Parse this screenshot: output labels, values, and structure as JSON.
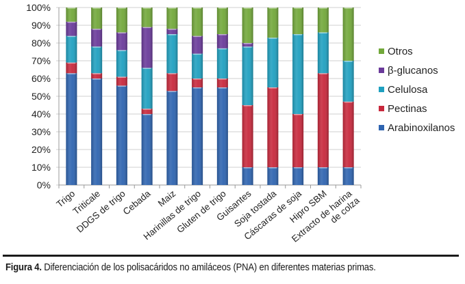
{
  "chart_data": {
    "type": "bar",
    "stacked": true,
    "percent_stacked": true,
    "title": "",
    "xlabel": "",
    "ylabel": "",
    "ylim": [
      0,
      100
    ],
    "yticks": [
      "0%",
      "10%",
      "20%",
      "30%",
      "40%",
      "50%",
      "60%",
      "70%",
      "80%",
      "90%",
      "100%"
    ],
    "grid": true,
    "legend_position": "right",
    "categories": [
      "Trigo",
      "Triticale",
      "DDGS de trigo",
      "Cebada",
      "Maiz",
      "Harinillas de trigo",
      "Gluten de trigo",
      "Guisantes",
      "Soja tostada",
      "Cáscaras de soja",
      "Hipro SBM",
      "Extracto de harina de colza"
    ],
    "category_lines": [
      [
        "Trigo"
      ],
      [
        "Triticale"
      ],
      [
        "DDGS de trigo"
      ],
      [
        "Cebada"
      ],
      [
        "Maiz"
      ],
      [
        "Harinillas de trigo"
      ],
      [
        "Gluten de trigo"
      ],
      [
        "Guisantes"
      ],
      [
        "Soja tostada"
      ],
      [
        "Cáscaras de soja"
      ],
      [
        "Hipro SBM"
      ],
      [
        "Extracto de harina",
        "de colza"
      ]
    ],
    "series": [
      {
        "name": "Arabinoxilanos",
        "color": "#2e64b0",
        "values": [
          63,
          60,
          56,
          40,
          53,
          55,
          55,
          10,
          10,
          10,
          10,
          10
        ]
      },
      {
        "name": "Pectinas",
        "color": "#c8283c",
        "values": [
          6,
          3,
          5,
          3,
          10,
          5,
          5,
          35,
          45,
          30,
          53,
          37
        ]
      },
      {
        "name": "Celulosa",
        "color": "#1fa0c0",
        "values": [
          15,
          15,
          15,
          23,
          22,
          14,
          17,
          33,
          28,
          45,
          23,
          23
        ]
      },
      {
        "name": "β-glucanos",
        "color": "#6a3a9a",
        "values": [
          8,
          10,
          10,
          23,
          3,
          10,
          8,
          2,
          0,
          0,
          0,
          0
        ]
      },
      {
        "name": "Otros",
        "color": "#72a83a",
        "values": [
          8,
          12,
          14,
          11,
          12,
          16,
          15,
          20,
          17,
          15,
          14,
          30
        ]
      }
    ],
    "legend_order": [
      "Otros",
      "β-glucanos",
      "Celulosa",
      "Pectinas",
      "Arabinoxilanos"
    ]
  },
  "caption": {
    "label": "Figura 4.",
    "text": " Diferenciación de los polisacáridos no amiláceos (PNA) en diferentes materias primas."
  }
}
